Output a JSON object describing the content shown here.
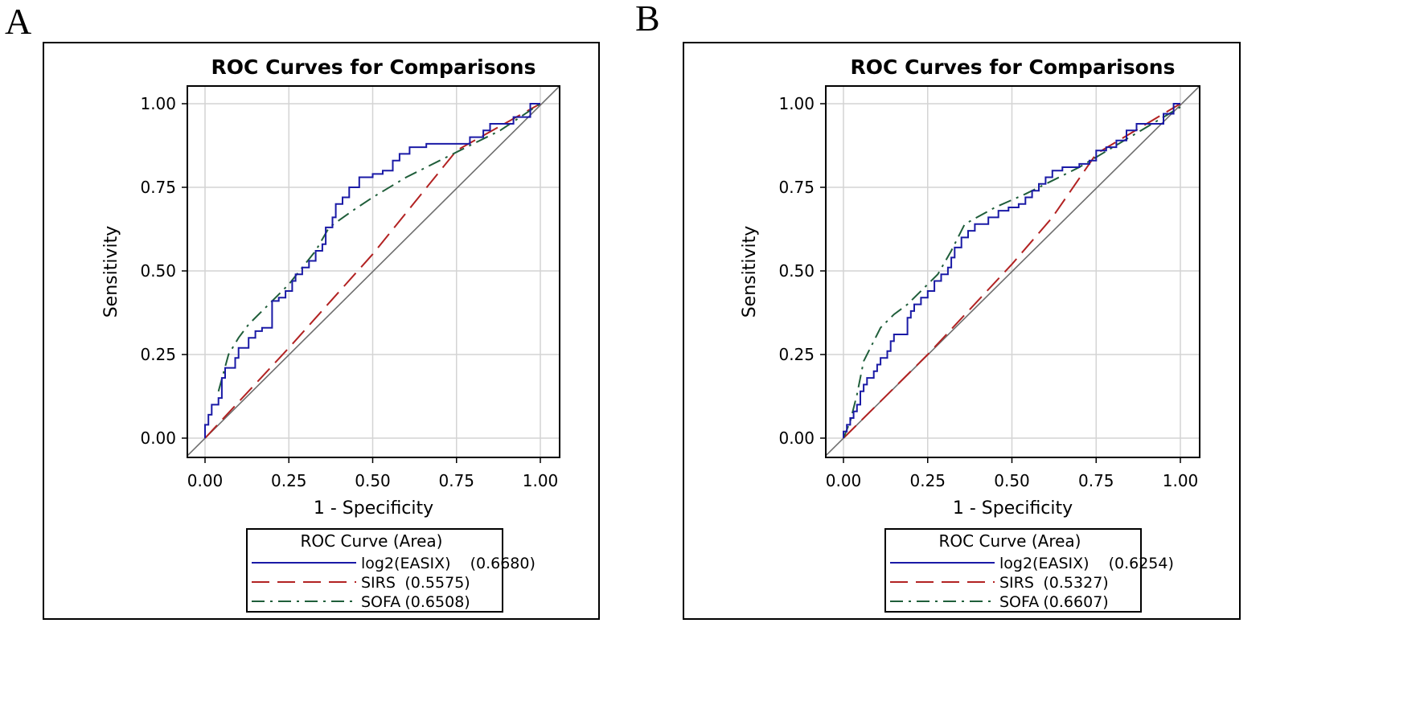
{
  "chart_data": [
    {
      "panel_label": "A",
      "type": "line",
      "title": "ROC Curves for Comparisons",
      "xlabel": "1 - Specificity",
      "ylabel": "Sensitivity",
      "xlim": [
        0,
        1
      ],
      "ylim": [
        0,
        1
      ],
      "xticks": [
        "0.00",
        "0.25",
        "0.50",
        "0.75",
        "1.00"
      ],
      "yticks": [
        "0.00",
        "0.25",
        "0.50",
        "0.75",
        "1.00"
      ],
      "grid": true,
      "legend_title": "ROC Curve (Area)",
      "legend_position": "bottom",
      "series": [
        {
          "name": "log2(EASIX)",
          "area": "(0.6680)",
          "color": "#1a1aa6",
          "dash": "solid",
          "step": true,
          "points": [
            [
              0,
              0
            ],
            [
              0,
              0.04
            ],
            [
              0.01,
              0.04
            ],
            [
              0.01,
              0.07
            ],
            [
              0.02,
              0.07
            ],
            [
              0.02,
              0.1
            ],
            [
              0.04,
              0.1
            ],
            [
              0.04,
              0.12
            ],
            [
              0.05,
              0.12
            ],
            [
              0.05,
              0.18
            ],
            [
              0.06,
              0.18
            ],
            [
              0.06,
              0.21
            ],
            [
              0.09,
              0.21
            ],
            [
              0.09,
              0.24
            ],
            [
              0.1,
              0.24
            ],
            [
              0.1,
              0.27
            ],
            [
              0.13,
              0.27
            ],
            [
              0.13,
              0.3
            ],
            [
              0.15,
              0.3
            ],
            [
              0.15,
              0.32
            ],
            [
              0.17,
              0.32
            ],
            [
              0.17,
              0.33
            ],
            [
              0.2,
              0.33
            ],
            [
              0.2,
              0.41
            ],
            [
              0.22,
              0.41
            ],
            [
              0.22,
              0.42
            ],
            [
              0.24,
              0.42
            ],
            [
              0.24,
              0.44
            ],
            [
              0.26,
              0.44
            ],
            [
              0.26,
              0.47
            ],
            [
              0.27,
              0.47
            ],
            [
              0.27,
              0.49
            ],
            [
              0.29,
              0.49
            ],
            [
              0.29,
              0.51
            ],
            [
              0.31,
              0.51
            ],
            [
              0.31,
              0.53
            ],
            [
              0.33,
              0.53
            ],
            [
              0.33,
              0.56
            ],
            [
              0.35,
              0.56
            ],
            [
              0.35,
              0.58
            ],
            [
              0.36,
              0.58
            ],
            [
              0.36,
              0.63
            ],
            [
              0.38,
              0.63
            ],
            [
              0.38,
              0.66
            ],
            [
              0.39,
              0.66
            ],
            [
              0.39,
              0.7
            ],
            [
              0.41,
              0.7
            ],
            [
              0.41,
              0.72
            ],
            [
              0.43,
              0.72
            ],
            [
              0.43,
              0.75
            ],
            [
              0.46,
              0.75
            ],
            [
              0.46,
              0.78
            ],
            [
              0.5,
              0.78
            ],
            [
              0.5,
              0.79
            ],
            [
              0.53,
              0.79
            ],
            [
              0.53,
              0.8
            ],
            [
              0.56,
              0.8
            ],
            [
              0.56,
              0.83
            ],
            [
              0.58,
              0.83
            ],
            [
              0.58,
              0.85
            ],
            [
              0.61,
              0.85
            ],
            [
              0.61,
              0.87
            ],
            [
              0.66,
              0.87
            ],
            [
              0.66,
              0.88
            ],
            [
              0.79,
              0.88
            ],
            [
              0.79,
              0.9
            ],
            [
              0.83,
              0.9
            ],
            [
              0.83,
              0.92
            ],
            [
              0.85,
              0.92
            ],
            [
              0.85,
              0.94
            ],
            [
              0.92,
              0.94
            ],
            [
              0.92,
              0.96
            ],
            [
              0.97,
              0.96
            ],
            [
              0.97,
              1
            ],
            [
              1,
              1
            ]
          ]
        },
        {
          "name": "SIRS",
          "area": "(0.5575)",
          "color": "#b22222",
          "dash": "longdash",
          "step": false,
          "points": [
            [
              0,
              0
            ],
            [
              0.25,
              0.27
            ],
            [
              0.5,
              0.55
            ],
            [
              0.75,
              0.86
            ],
            [
              1,
              1
            ]
          ]
        },
        {
          "name": "SOFA",
          "area": "(0.6508)",
          "color": "#1f5e3a",
          "dash": "dashdot",
          "step": false,
          "points": [
            [
              0.04,
              0.14
            ],
            [
              0.07,
              0.25
            ],
            [
              0.1,
              0.3
            ],
            [
              0.13,
              0.34
            ],
            [
              0.17,
              0.38
            ],
            [
              0.21,
              0.42
            ],
            [
              0.25,
              0.46
            ],
            [
              0.29,
              0.51
            ],
            [
              0.33,
              0.56
            ],
            [
              0.37,
              0.63
            ],
            [
              0.44,
              0.68
            ],
            [
              0.5,
              0.72
            ],
            [
              0.6,
              0.78
            ],
            [
              0.7,
              0.83
            ],
            [
              0.76,
              0.86
            ],
            [
              0.88,
              0.92
            ],
            [
              1,
              1
            ]
          ]
        }
      ]
    },
    {
      "panel_label": "B",
      "type": "line",
      "title": "ROC Curves for Comparisons",
      "xlabel": "1 - Specificity",
      "ylabel": "Sensitivity",
      "xlim": [
        0,
        1
      ],
      "ylim": [
        0,
        1
      ],
      "xticks": [
        "0.00",
        "0.25",
        "0.50",
        "0.75",
        "1.00"
      ],
      "yticks": [
        "0.00",
        "0.25",
        "0.50",
        "0.75",
        "1.00"
      ],
      "grid": true,
      "legend_title": "ROC Curve (Area)",
      "legend_position": "bottom",
      "series": [
        {
          "name": "log2(EASIX)",
          "area": "(0.6254)",
          "color": "#1a1aa6",
          "dash": "solid",
          "step": true,
          "points": [
            [
              0,
              0
            ],
            [
              0,
              0.02
            ],
            [
              0.01,
              0.02
            ],
            [
              0.01,
              0.04
            ],
            [
              0.02,
              0.04
            ],
            [
              0.02,
              0.06
            ],
            [
              0.03,
              0.06
            ],
            [
              0.03,
              0.08
            ],
            [
              0.04,
              0.08
            ],
            [
              0.04,
              0.1
            ],
            [
              0.05,
              0.1
            ],
            [
              0.05,
              0.14
            ],
            [
              0.06,
              0.14
            ],
            [
              0.06,
              0.16
            ],
            [
              0.07,
              0.16
            ],
            [
              0.07,
              0.18
            ],
            [
              0.09,
              0.18
            ],
            [
              0.09,
              0.2
            ],
            [
              0.1,
              0.2
            ],
            [
              0.1,
              0.22
            ],
            [
              0.11,
              0.22
            ],
            [
              0.11,
              0.24
            ],
            [
              0.13,
              0.24
            ],
            [
              0.13,
              0.26
            ],
            [
              0.14,
              0.26
            ],
            [
              0.14,
              0.29
            ],
            [
              0.15,
              0.29
            ],
            [
              0.15,
              0.31
            ],
            [
              0.19,
              0.31
            ],
            [
              0.19,
              0.36
            ],
            [
              0.2,
              0.36
            ],
            [
              0.2,
              0.38
            ],
            [
              0.21,
              0.38
            ],
            [
              0.21,
              0.4
            ],
            [
              0.23,
              0.4
            ],
            [
              0.23,
              0.42
            ],
            [
              0.25,
              0.42
            ],
            [
              0.25,
              0.44
            ],
            [
              0.27,
              0.44
            ],
            [
              0.27,
              0.47
            ],
            [
              0.29,
              0.47
            ],
            [
              0.29,
              0.49
            ],
            [
              0.31,
              0.49
            ],
            [
              0.31,
              0.51
            ],
            [
              0.32,
              0.51
            ],
            [
              0.32,
              0.54
            ],
            [
              0.33,
              0.54
            ],
            [
              0.33,
              0.57
            ],
            [
              0.35,
              0.57
            ],
            [
              0.35,
              0.6
            ],
            [
              0.37,
              0.6
            ],
            [
              0.37,
              0.62
            ],
            [
              0.39,
              0.62
            ],
            [
              0.39,
              0.64
            ],
            [
              0.43,
              0.64
            ],
            [
              0.43,
              0.66
            ],
            [
              0.46,
              0.66
            ],
            [
              0.46,
              0.68
            ],
            [
              0.49,
              0.68
            ],
            [
              0.49,
              0.69
            ],
            [
              0.52,
              0.69
            ],
            [
              0.52,
              0.7
            ],
            [
              0.54,
              0.7
            ],
            [
              0.54,
              0.72
            ],
            [
              0.56,
              0.72
            ],
            [
              0.56,
              0.74
            ],
            [
              0.58,
              0.74
            ],
            [
              0.58,
              0.76
            ],
            [
              0.6,
              0.76
            ],
            [
              0.6,
              0.78
            ],
            [
              0.62,
              0.78
            ],
            [
              0.62,
              0.8
            ],
            [
              0.65,
              0.8
            ],
            [
              0.65,
              0.81
            ],
            [
              0.7,
              0.81
            ],
            [
              0.7,
              0.82
            ],
            [
              0.73,
              0.82
            ],
            [
              0.73,
              0.83
            ],
            [
              0.75,
              0.83
            ],
            [
              0.75,
              0.86
            ],
            [
              0.78,
              0.86
            ],
            [
              0.78,
              0.87
            ],
            [
              0.81,
              0.87
            ],
            [
              0.81,
              0.89
            ],
            [
              0.84,
              0.89
            ],
            [
              0.84,
              0.92
            ],
            [
              0.87,
              0.92
            ],
            [
              0.87,
              0.94
            ],
            [
              0.95,
              0.94
            ],
            [
              0.95,
              0.97
            ],
            [
              0.98,
              0.97
            ],
            [
              0.98,
              1
            ],
            [
              1,
              1
            ]
          ]
        },
        {
          "name": "SIRS",
          "area": "(0.5327)",
          "color": "#b22222",
          "dash": "longdash",
          "step": false,
          "points": [
            [
              0,
              0
            ],
            [
              0.25,
              0.25
            ],
            [
              0.5,
              0.52
            ],
            [
              0.62,
              0.66
            ],
            [
              0.75,
              0.85
            ],
            [
              1,
              1
            ]
          ]
        },
        {
          "name": "SOFA",
          "area": "(0.6607)",
          "color": "#1f5e3a",
          "dash": "dashdot",
          "step": false,
          "points": [
            [
              0,
              0
            ],
            [
              0.02,
              0.05
            ],
            [
              0.04,
              0.13
            ],
            [
              0.06,
              0.23
            ],
            [
              0.08,
              0.27
            ],
            [
              0.11,
              0.33
            ],
            [
              0.15,
              0.37
            ],
            [
              0.19,
              0.4
            ],
            [
              0.23,
              0.44
            ],
            [
              0.28,
              0.49
            ],
            [
              0.32,
              0.56
            ],
            [
              0.36,
              0.64
            ],
            [
              0.45,
              0.69
            ],
            [
              0.54,
              0.73
            ],
            [
              0.62,
              0.77
            ],
            [
              0.7,
              0.81
            ],
            [
              0.8,
              0.87
            ],
            [
              0.9,
              0.93
            ],
            [
              1,
              0.99
            ]
          ]
        }
      ]
    }
  ]
}
